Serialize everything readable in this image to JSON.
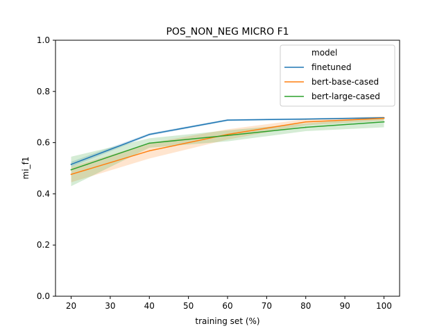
{
  "chart_data": {
    "type": "line",
    "title": "POS_NON_NEG MICRO F1",
    "xlabel": "training set (%)",
    "ylabel": "mi_f1",
    "x": [
      20,
      40,
      60,
      80,
      100
    ],
    "xlim": [
      16,
      104
    ],
    "ylim": [
      0.0,
      1.0
    ],
    "xticks": [
      "20",
      "30",
      "40",
      "50",
      "60",
      "70",
      "80",
      "90",
      "100"
    ],
    "yticks": [
      "0.0",
      "0.2",
      "0.4",
      "0.6",
      "0.8",
      "1.0"
    ],
    "grid": false,
    "legend": {
      "title": "model",
      "placement": "top-right"
    },
    "series": [
      {
        "name": "finetuned",
        "color": "#1f77b4",
        "values": [
          0.515,
          0.632,
          0.688,
          0.692,
          0.697
        ],
        "ci_low": [
          0.505,
          0.627,
          0.684,
          0.689,
          0.694
        ],
        "ci_high": [
          0.525,
          0.637,
          0.692,
          0.695,
          0.7
        ]
      },
      {
        "name": "bert-base-cased",
        "color": "#ff7f0e",
        "values": [
          0.476,
          0.568,
          0.632,
          0.681,
          0.695
        ],
        "ci_low": [
          0.445,
          0.538,
          0.612,
          0.668,
          0.686
        ],
        "ci_high": [
          0.505,
          0.598,
          0.652,
          0.692,
          0.703
        ]
      },
      {
        "name": "bert-large-cased",
        "color": "#2ca02c",
        "values": [
          0.494,
          0.598,
          0.628,
          0.66,
          0.681
        ],
        "ci_low": [
          0.43,
          0.58,
          0.605,
          0.645,
          0.66
        ],
        "ci_high": [
          0.545,
          0.617,
          0.648,
          0.675,
          0.7
        ]
      }
    ]
  }
}
